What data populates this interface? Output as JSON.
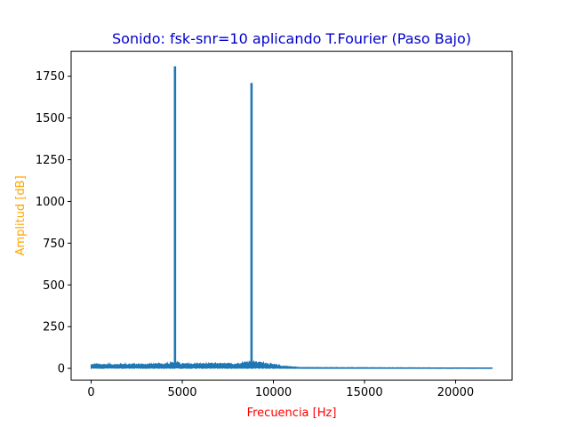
{
  "chart_data": {
    "type": "line",
    "title": "Sonido: fsk-snr=10 aplicando T.Fourier (Paso Bajo)",
    "xlabel": "Frecuencia [Hz]",
    "ylabel": "Amplitud [dB]",
    "xlim": [
      -1100,
      23100
    ],
    "ylim": [
      -70,
      1900
    ],
    "xticks": [
      0,
      5000,
      10000,
      15000,
      20000
    ],
    "yticks": [
      0,
      250,
      500,
      750,
      1000,
      1250,
      1500,
      1750
    ],
    "grid": false,
    "legend": "none",
    "series": [
      {
        "color": "#1f77b4",
        "peaks": [
          {
            "x": 4600,
            "y": 1810
          },
          {
            "x": 8800,
            "y": 1710
          }
        ],
        "noise_floor": [
          {
            "x": 0,
            "y": 25
          },
          {
            "x": 4000,
            "y": 28
          },
          {
            "x": 4600,
            "y": 40
          },
          {
            "x": 5000,
            "y": 30
          },
          {
            "x": 8000,
            "y": 30
          },
          {
            "x": 8800,
            "y": 45
          },
          {
            "x": 9500,
            "y": 35
          },
          {
            "x": 10500,
            "y": 15
          },
          {
            "x": 11500,
            "y": 5
          },
          {
            "x": 22000,
            "y": 2
          }
        ],
        "x_end": 22000
      }
    ],
    "colors": {
      "title": "#0000cc",
      "xlabel": "#ff0000",
      "ylabel": "#ffa500",
      "axes": "#000000"
    }
  }
}
